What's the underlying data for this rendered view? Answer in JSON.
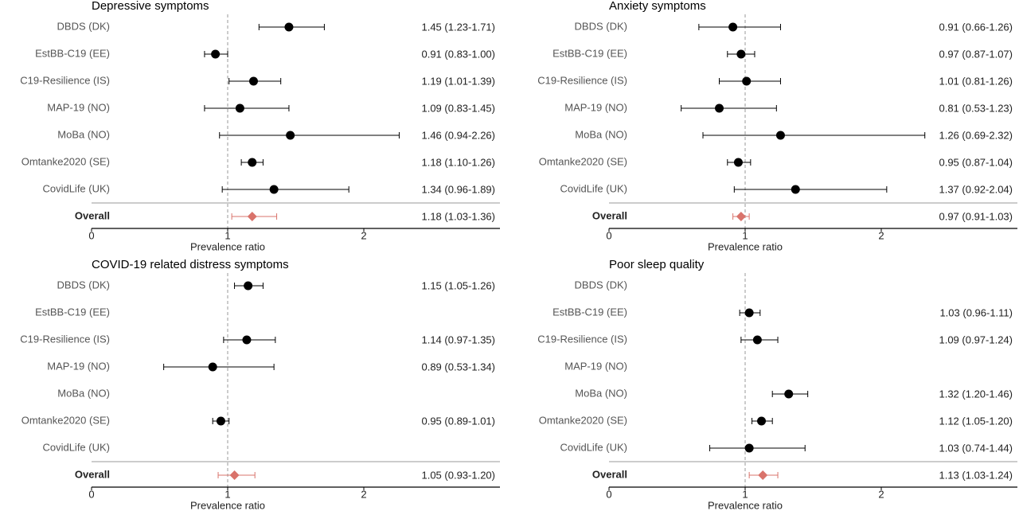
{
  "chart_data": [
    {
      "type": "forest",
      "title": "Depressive symptoms",
      "categories": [
        "DBDS (DK)",
        "EstBB-C19 (EE)",
        "C19-Resilience (IS)",
        "MAP-19 (NO)",
        "MoBa (NO)",
        "Omtanke2020 (SE)",
        "CovidLife (UK)"
      ],
      "values": [
        1.45,
        0.91,
        1.19,
        1.09,
        1.46,
        1.18,
        1.34
      ],
      "lower": [
        1.23,
        0.83,
        1.01,
        0.83,
        0.94,
        1.1,
        0.96
      ],
      "upper": [
        1.71,
        1.0,
        1.39,
        1.45,
        2.26,
        1.26,
        1.89
      ],
      "value_labels": [
        "1.45 (1.23-1.71)",
        "0.91 (0.83-1.00)",
        "1.19 (1.01-1.39)",
        "1.09 (0.83-1.45)",
        "1.46 (0.94-2.26)",
        "1.18 (1.10-1.26)",
        "1.34 (0.96-1.89)"
      ],
      "overall": {
        "label": "Overall",
        "value": 1.18,
        "lower": 1.03,
        "upper": 1.36,
        "value_label": "1.18 (1.03-1.36)"
      },
      "xlabel": "Prevalence ratio",
      "xlim": [
        0,
        3
      ],
      "xticks": [
        0,
        1,
        2
      ],
      "refline": 1,
      "color": "#000000",
      "overall_color": "#d9736b"
    },
    {
      "type": "forest",
      "title": "Anxiety symptoms",
      "categories": [
        "DBDS (DK)",
        "EstBB-C19 (EE)",
        "C19-Resilience (IS)",
        "MAP-19 (NO)",
        "MoBa (NO)",
        "Omtanke2020 (SE)",
        "CovidLife (UK)"
      ],
      "values": [
        0.91,
        0.97,
        1.01,
        0.81,
        1.26,
        0.95,
        1.37
      ],
      "lower": [
        0.66,
        0.87,
        0.81,
        0.53,
        0.69,
        0.87,
        0.92
      ],
      "upper": [
        1.26,
        1.07,
        1.26,
        1.23,
        2.32,
        1.04,
        2.04
      ],
      "value_labels": [
        "0.91 (0.66-1.26)",
        "0.97 (0.87-1.07)",
        "1.01 (0.81-1.26)",
        "0.81 (0.53-1.23)",
        "1.26 (0.69-2.32)",
        "0.95 (0.87-1.04)",
        "1.37 (0.92-2.04)"
      ],
      "overall": {
        "label": "Overall",
        "value": 0.97,
        "lower": 0.91,
        "upper": 1.03,
        "value_label": "0.97 (0.91-1.03)"
      },
      "xlabel": "Prevalence ratio",
      "xlim": [
        0,
        3
      ],
      "xticks": [
        0,
        1,
        2
      ],
      "refline": 1,
      "color": "#000000",
      "overall_color": "#d9736b"
    },
    {
      "type": "forest",
      "title": "COVID-19 related distress symptoms",
      "categories": [
        "DBDS (DK)",
        "EstBB-C19 (EE)",
        "C19-Resilience (IS)",
        "MAP-19 (NO)",
        "MoBa (NO)",
        "Omtanke2020 (SE)",
        "CovidLife (UK)"
      ],
      "values": [
        1.15,
        null,
        1.14,
        0.89,
        null,
        0.95,
        null
      ],
      "lower": [
        1.05,
        null,
        0.97,
        0.53,
        null,
        0.89,
        null
      ],
      "upper": [
        1.26,
        null,
        1.35,
        1.34,
        null,
        1.01,
        null
      ],
      "value_labels": [
        "1.15 (1.05-1.26)",
        null,
        "1.14 (0.97-1.35)",
        "0.89 (0.53-1.34)",
        null,
        "0.95 (0.89-1.01)",
        null
      ],
      "overall": {
        "label": "Overall",
        "value": 1.05,
        "lower": 0.93,
        "upper": 1.2,
        "value_label": "1.05 (0.93-1.20)"
      },
      "xlabel": "Prevalence ratio",
      "xlim": [
        0,
        3
      ],
      "xticks": [
        0,
        1,
        2
      ],
      "refline": 1,
      "color": "#000000",
      "overall_color": "#d9736b"
    },
    {
      "type": "forest",
      "title": "Poor sleep quality",
      "categories": [
        "DBDS (DK)",
        "EstBB-C19 (EE)",
        "C19-Resilience (IS)",
        "MAP-19 (NO)",
        "MoBa (NO)",
        "Omtanke2020 (SE)",
        "CovidLife (UK)"
      ],
      "values": [
        null,
        1.03,
        1.09,
        null,
        1.32,
        1.12,
        1.03
      ],
      "lower": [
        null,
        0.96,
        0.97,
        null,
        1.2,
        1.05,
        0.74
      ],
      "upper": [
        null,
        1.11,
        1.24,
        null,
        1.46,
        1.2,
        1.44
      ],
      "value_labels": [
        null,
        "1.03 (0.96-1.11)",
        "1.09 (0.97-1.24)",
        null,
        "1.32 (1.20-1.46)",
        "1.12 (1.05-1.20)",
        "1.03 (0.74-1.44)"
      ],
      "overall": {
        "label": "Overall",
        "value": 1.13,
        "lower": 1.03,
        "upper": 1.24,
        "value_label": "1.13 (1.03-1.24)"
      },
      "xlabel": "Prevalence ratio",
      "xlim": [
        0,
        3
      ],
      "xticks": [
        0,
        1,
        2
      ],
      "refline": 1,
      "color": "#000000",
      "overall_color": "#d9736b"
    }
  ]
}
